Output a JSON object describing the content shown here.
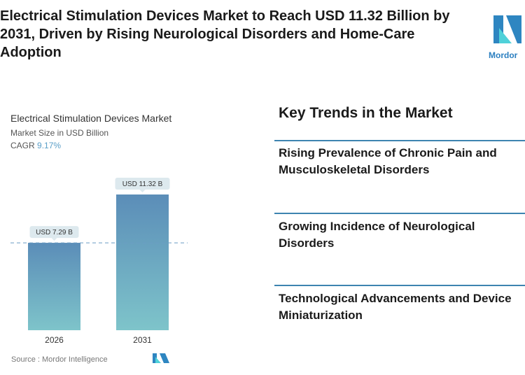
{
  "headline": {
    "lines": [
      "Electrical Stimulation Devices Market to Reach USD 11.32 Billion by",
      "2031, Driven by Rising Neurological Disorders and Home-Care",
      "Adoption"
    ]
  },
  "logo": {
    "text": "Mordor"
  },
  "chart_data": {
    "type": "bar",
    "title": "Electrical Stimulation Devices Market",
    "subtitle": "Market Size in USD Billion",
    "cagr_label": "CAGR",
    "cagr": "9.17%",
    "categories": [
      "2026",
      "2031"
    ],
    "values": [
      7.29,
      11.32
    ],
    "data_labels": [
      "USD 7.29 B",
      "USD 11.32 B"
    ],
    "colors": {
      "top": "#5b8db8",
      "bottom": "#7ec4ca"
    },
    "grid": false
  },
  "source": "Source :  Mordor Intelligence",
  "trends": {
    "title": "Key Trends in the Market",
    "items": [
      [
        "Rising Prevalence of Chronic Pain and",
        "Musculoskeletal Disorders"
      ],
      [
        "Growing Incidence of Neurological Disorders"
      ],
      [
        "Technological Advancements and Device",
        "Miniaturization"
      ]
    ]
  }
}
